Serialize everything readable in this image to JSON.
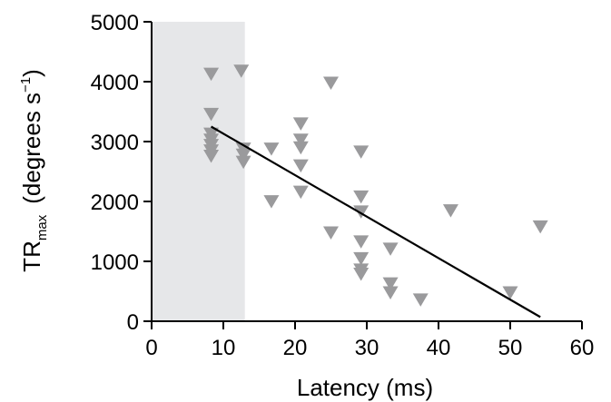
{
  "chart_data": {
    "type": "scatter",
    "xlabel": "Latency  (ms)",
    "ylabel": {
      "main": "TR",
      "subscript": "max",
      "unit_text": "(degrees s",
      "unit_sup": "−1",
      "unit_close": ")"
    },
    "xlim": [
      0,
      60
    ],
    "ylim": [
      0,
      5000
    ],
    "x_ticks": [
      0,
      10,
      20,
      30,
      40,
      50,
      60
    ],
    "y_ticks": [
      0,
      1000,
      2000,
      3000,
      4000,
      5000
    ],
    "grid": false,
    "shaded_region": {
      "x_start": 0,
      "x_end": 13,
      "color": "#e6e7e9"
    },
    "marker": {
      "shape": "triangle-down",
      "color": "#9a9a9c"
    },
    "points": [
      {
        "x": 8.3,
        "y": 4150
      },
      {
        "x": 8.3,
        "y": 3480
      },
      {
        "x": 8.3,
        "y": 3150
      },
      {
        "x": 8.3,
        "y": 3050
      },
      {
        "x": 8.3,
        "y": 2960
      },
      {
        "x": 8.3,
        "y": 2870
      },
      {
        "x": 8.3,
        "y": 2780
      },
      {
        "x": 12.5,
        "y": 4200
      },
      {
        "x": 12.8,
        "y": 2900
      },
      {
        "x": 12.8,
        "y": 2800
      },
      {
        "x": 12.8,
        "y": 2680
      },
      {
        "x": 16.7,
        "y": 2900
      },
      {
        "x": 16.7,
        "y": 2020
      },
      {
        "x": 20.8,
        "y": 3320
      },
      {
        "x": 20.8,
        "y": 3050
      },
      {
        "x": 20.8,
        "y": 2920
      },
      {
        "x": 20.8,
        "y": 2620
      },
      {
        "x": 20.8,
        "y": 2180
      },
      {
        "x": 25.0,
        "y": 4000
      },
      {
        "x": 25.0,
        "y": 1500
      },
      {
        "x": 29.2,
        "y": 2850
      },
      {
        "x": 29.2,
        "y": 2100
      },
      {
        "x": 29.2,
        "y": 1850
      },
      {
        "x": 29.2,
        "y": 1350
      },
      {
        "x": 29.2,
        "y": 1070
      },
      {
        "x": 29.2,
        "y": 880
      },
      {
        "x": 29.2,
        "y": 810
      },
      {
        "x": 33.3,
        "y": 1230
      },
      {
        "x": 33.3,
        "y": 650
      },
      {
        "x": 33.3,
        "y": 500
      },
      {
        "x": 37.5,
        "y": 380
      },
      {
        "x": 41.7,
        "y": 1870
      },
      {
        "x": 50.0,
        "y": 500
      },
      {
        "x": 54.2,
        "y": 1600
      }
    ],
    "fit_line": {
      "x": [
        8.3,
        54.2
      ],
      "y": [
        3250,
        70
      ]
    }
  }
}
